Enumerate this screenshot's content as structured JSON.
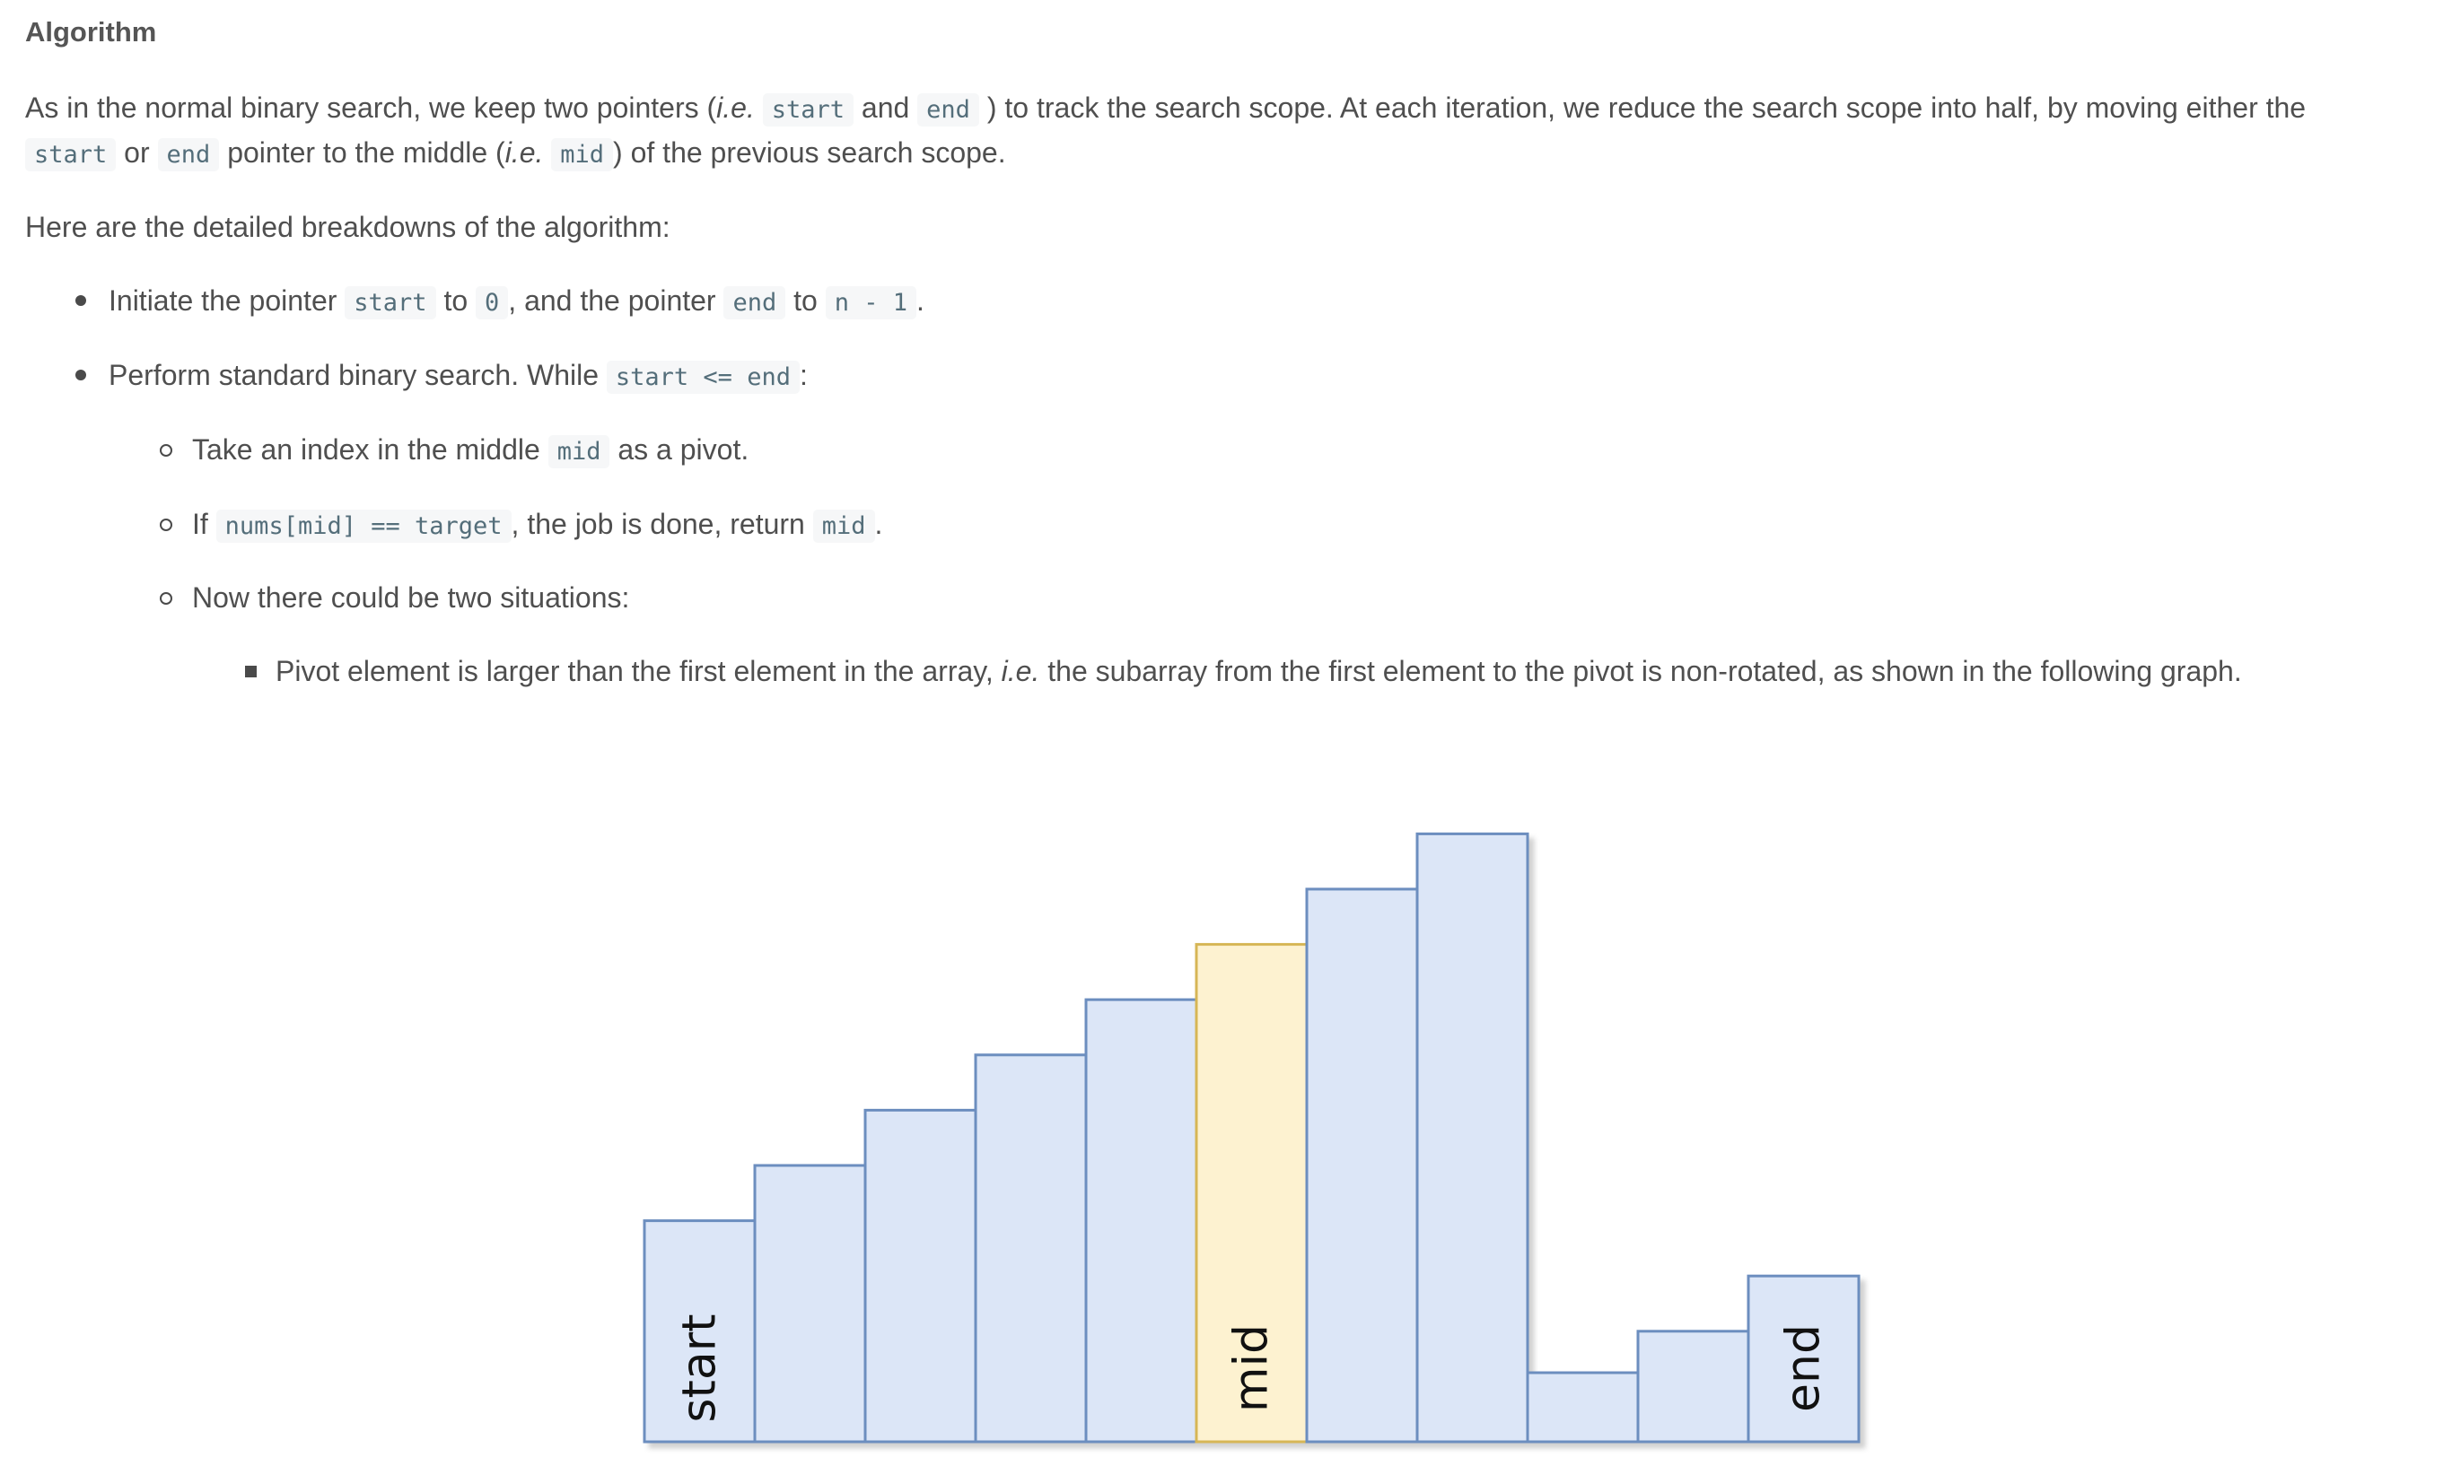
{
  "heading": "Algorithm",
  "intro": {
    "t1": "As in the normal binary search, we keep two pointers (",
    "ie1": "i.e.",
    "code_start": "start",
    "t2": "and",
    "code_end": "end",
    "t3": ") to track the search scope. At each iteration, we reduce the search scope into half, by moving either the",
    "t4": "or",
    "t5": "pointer to the middle (",
    "ie2": "i.e.",
    "code_mid": "mid",
    "t6": ") of the previous search scope."
  },
  "breakdown_label": "Here are the detailed breakdowns of the algorithm:",
  "bullets": {
    "b1": {
      "t1": "Initiate the pointer",
      "c1": "start",
      "t2": "to",
      "c2": "0",
      "t3": ", and the pointer",
      "c3": "end",
      "t4": "to",
      "c4": "n - 1",
      "t5": "."
    },
    "b2": {
      "t1": "Perform standard binary search. While",
      "c1": "start <= end",
      "t2": ":"
    },
    "s1": {
      "t1": "Take an index in the middle",
      "c1": "mid",
      "t2": "as a pivot."
    },
    "s2": {
      "t1": "If",
      "c1": "nums[mid] == target",
      "t2": ", the job is done, return",
      "c2": "mid",
      "t3": "."
    },
    "s3": {
      "t1": "Now there could be two situations:"
    },
    "ss1": {
      "t1": "Pivot element is larger than the first element in the array,",
      "ie": "i.e.",
      "t2": "the subarray from the first element to the pivot is non-rotated, as shown in the following graph."
    }
  },
  "chart_data": {
    "type": "bar",
    "values": [
      4,
      5,
      6,
      7,
      8,
      9,
      10,
      11,
      1.25,
      2,
      3
    ],
    "labels": [
      "start",
      "",
      "",
      "",
      "",
      "mid",
      "",
      "",
      "",
      "",
      "end"
    ],
    "highlight_index": 5,
    "colors": {
      "bar_fill": "#dce6f7",
      "bar_stroke": "#6c8ebf",
      "highlight_fill": "#fdf2d0",
      "highlight_stroke": "#d6b656"
    }
  }
}
